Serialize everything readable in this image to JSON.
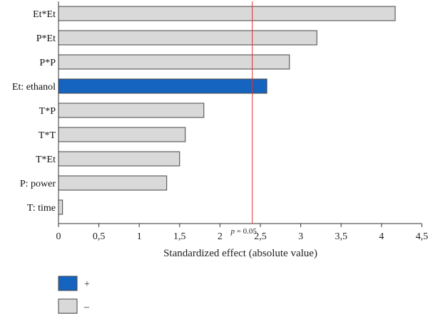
{
  "chart_data": {
    "type": "bar",
    "orientation": "horizontal",
    "categories": [
      "Et*Et",
      "P*Et",
      "P*P",
      "Et: ethanol",
      "T*P",
      "T*T",
      "T*Et",
      "P: power",
      "T: time"
    ],
    "values": [
      4.17,
      3.2,
      2.86,
      2.58,
      1.8,
      1.57,
      1.5,
      1.34,
      0.05
    ],
    "signs": [
      "-",
      "-",
      "-",
      "+",
      "-",
      "-",
      "-",
      "-",
      "-"
    ],
    "xlabel": "Standardized effect (absolute value)",
    "xlim": [
      0,
      4.5
    ],
    "xticks": [
      0,
      0.5,
      1,
      1.5,
      2,
      2.5,
      3,
      3.5,
      4,
      4.5
    ],
    "xtick_labels": [
      "0",
      "0,5",
      "1",
      "1,5",
      "2",
      "2,5",
      "3",
      "3,5",
      "4",
      "4,5"
    ],
    "reference_line": {
      "value": 2.4,
      "label_italic": "p",
      "label_rest": " = 0.05",
      "color": "#e0302e"
    },
    "grid": false,
    "legend": {
      "placement": "bottom-left",
      "items": [
        {
          "label": "+",
          "color": "#1565c0"
        },
        {
          "label": "–",
          "color": "#d9d9d9"
        }
      ]
    },
    "colors": {
      "positive": "#1565c0",
      "negative": "#d9d9d9",
      "bar_stroke": "#444444"
    }
  }
}
